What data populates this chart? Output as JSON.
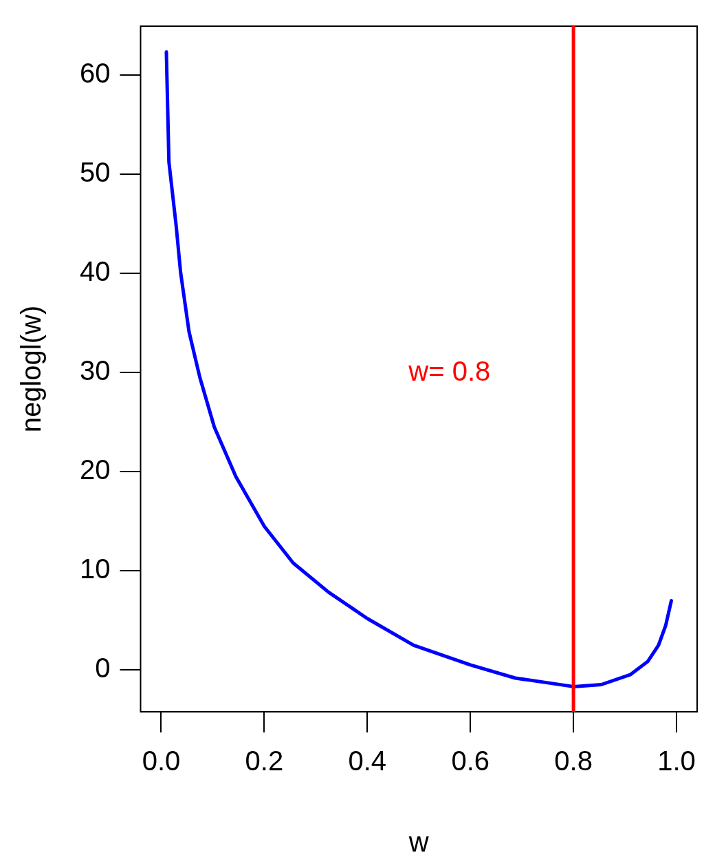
{
  "chart_data": {
    "type": "line",
    "xlabel": "w",
    "ylabel": "neglogl(w)",
    "x": [
      0.01,
      0.015,
      0.029,
      0.0376,
      0.054,
      0.075,
      0.103,
      0.145,
      0.2,
      0.256,
      0.325,
      0.4,
      0.49,
      0.6,
      0.687,
      0.8,
      0.854,
      0.91,
      0.944,
      0.965,
      0.979,
      0.99
    ],
    "series": [
      {
        "color": "#0000ff",
        "values": [
          62.3,
          51.2,
          44.8,
          40.1,
          34.1,
          29.5,
          24.5,
          19.5,
          14.5,
          10.8,
          7.85,
          5.2,
          2.5,
          0.53,
          -0.8,
          -1.66,
          -1.46,
          -0.47,
          0.86,
          2.5,
          4.5,
          7.0
        ]
      }
    ],
    "xlim": [
      -0.04,
      1.04
    ],
    "xticks": [
      {
        "value": 0,
        "label": "0.0"
      },
      0.2,
      0.4,
      0.6,
      0.8,
      {
        "value": 1,
        "label": "1.0"
      }
    ],
    "ylim": [
      -4.2,
      64.9
    ],
    "yticks": [
      0,
      10,
      20,
      30,
      40,
      50,
      60
    ],
    "ref_lines": [
      {
        "axis": "x",
        "value": 0.8,
        "color": "#ff0000"
      }
    ],
    "annotations": [
      "w= 0.8"
    ],
    "grid": false,
    "legend": false,
    "marker": "none",
    "line_style": "solid"
  }
}
